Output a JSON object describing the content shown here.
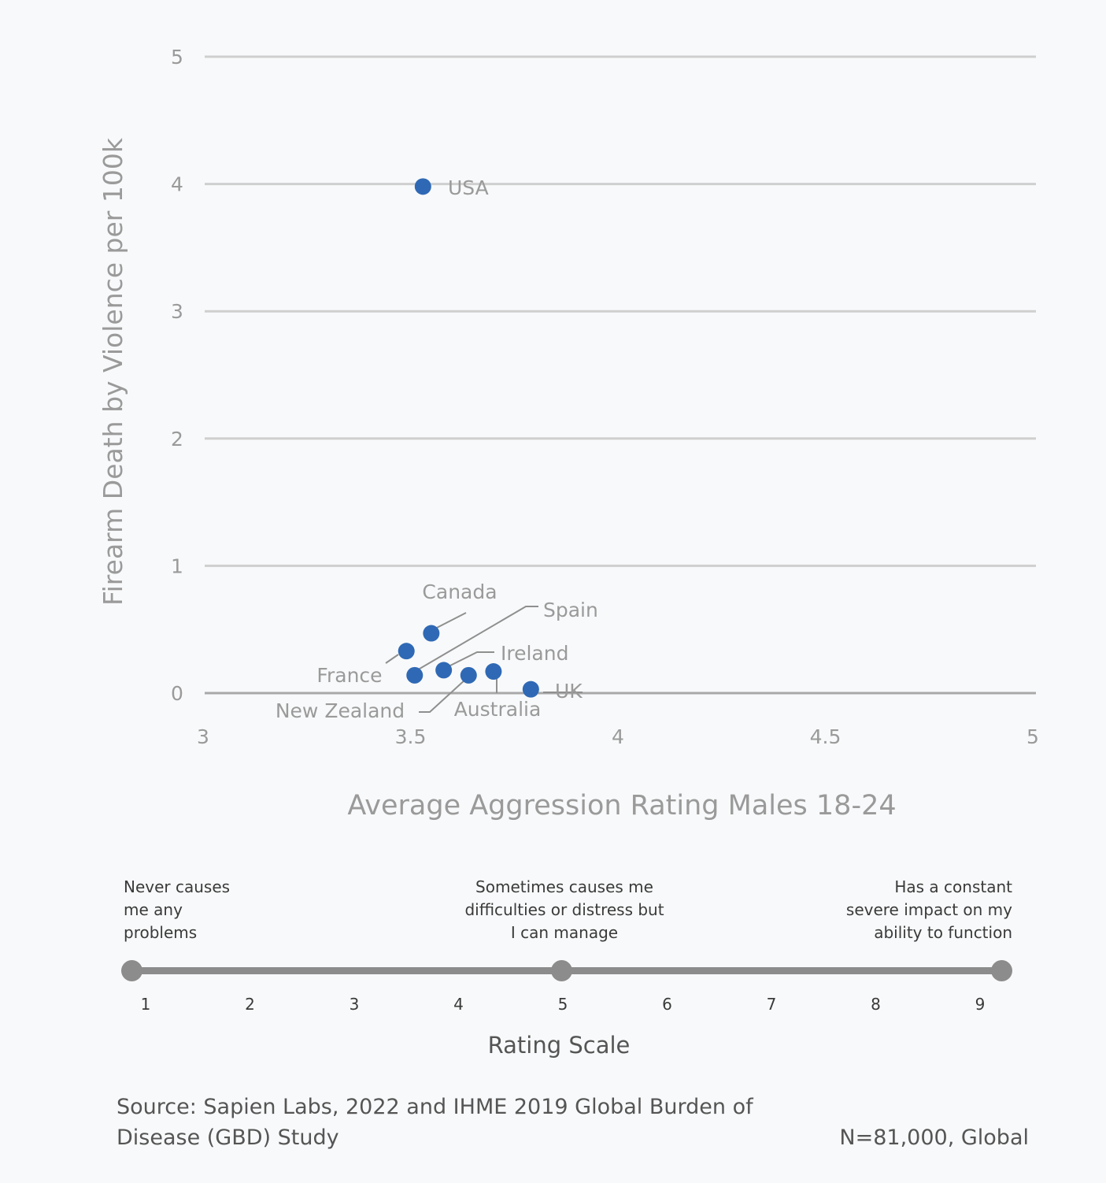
{
  "chart_data": {
    "type": "scatter",
    "xlabel": "Average Aggression Rating Males 18-24",
    "ylabel": "Firearm Death by Violence per 100k",
    "xlim": [
      3,
      5
    ],
    "ylim": [
      0,
      5
    ],
    "xticks": [
      "3",
      "3.5",
      "4",
      "4.5",
      "5"
    ],
    "yticks": [
      "0",
      "1",
      "2",
      "3",
      "4",
      "5"
    ],
    "grid": true,
    "point_color": "#2f69b5",
    "points": [
      {
        "label": "USA",
        "x": 3.53,
        "y": 3.98
      },
      {
        "label": "Canada",
        "x": 3.55,
        "y": 0.47
      },
      {
        "label": "France",
        "x": 3.49,
        "y": 0.33
      },
      {
        "label": "Spain",
        "x": 3.51,
        "y": 0.14
      },
      {
        "label": "Ireland",
        "x": 3.58,
        "y": 0.18
      },
      {
        "label": "New Zealand",
        "x": 3.64,
        "y": 0.14
      },
      {
        "label": "Australia",
        "x": 3.7,
        "y": 0.17
      },
      {
        "label": "UK",
        "x": 3.79,
        "y": 0.03
      }
    ]
  },
  "rating_scale": {
    "title": "Rating Scale",
    "numbers": [
      "1",
      "2",
      "3",
      "4",
      "5",
      "6",
      "7",
      "8",
      "9"
    ],
    "left_text": "Never causes\nme any\nproblems",
    "middle_text": "Sometimes causes me\ndifficulties or distress but\nI can manage",
    "right_text": "Has a constant\nsevere impact on my\nability to function"
  },
  "footer": {
    "source": "Source: Sapien Labs, 2022 and IHME 2019 Global Burden of\nDisease (GBD) Study",
    "sample": "N=81,000, Global"
  }
}
